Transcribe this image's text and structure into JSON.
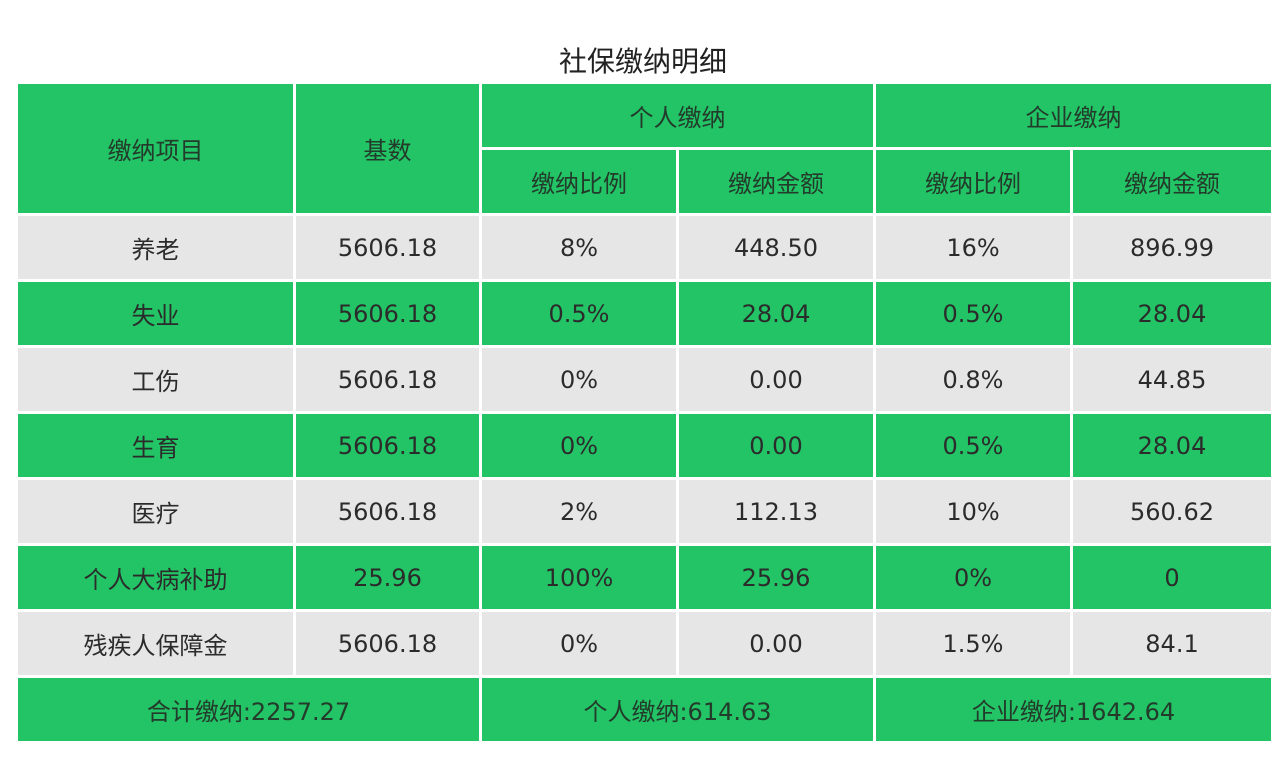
{
  "title": "社保缴纳明细",
  "header": {
    "item": "缴纳项目",
    "base": "基数",
    "personal": "个人缴纳",
    "company": "企业缴纳",
    "rate": "缴纳比例",
    "amount": "缴纳金额"
  },
  "rows": [
    {
      "name": "养老",
      "base": "5606.18",
      "p_rate": "8%",
      "p_amount": "448.50",
      "c_rate": "16%",
      "c_amount": "896.99"
    },
    {
      "name": "失业",
      "base": "5606.18",
      "p_rate": "0.5%",
      "p_amount": "28.04",
      "c_rate": "0.5%",
      "c_amount": "28.04"
    },
    {
      "name": "工伤",
      "base": "5606.18",
      "p_rate": "0%",
      "p_amount": "0.00",
      "c_rate": "0.8%",
      "c_amount": "44.85"
    },
    {
      "name": "生育",
      "base": "5606.18",
      "p_rate": "0%",
      "p_amount": "0.00",
      "c_rate": "0.5%",
      "c_amount": "28.04"
    },
    {
      "name": "医疗",
      "base": "5606.18",
      "p_rate": "2%",
      "p_amount": "112.13",
      "c_rate": "10%",
      "c_amount": "560.62"
    },
    {
      "name": "个人大病补助",
      "base": "25.96",
      "p_rate": "100%",
      "p_amount": "25.96",
      "c_rate": "0%",
      "c_amount": "0"
    },
    {
      "name": "残疾人保障金",
      "base": "5606.18",
      "p_rate": "0%",
      "p_amount": "0.00",
      "c_rate": "1.5%",
      "c_amount": "84.1"
    }
  ],
  "totals": {
    "total": "合计缴纳:2257.27",
    "personal": "个人缴纳:614.63",
    "company": "企业缴纳:1642.64"
  },
  "colors": {
    "green": "#22c466",
    "gray": "#e6e6e6"
  }
}
